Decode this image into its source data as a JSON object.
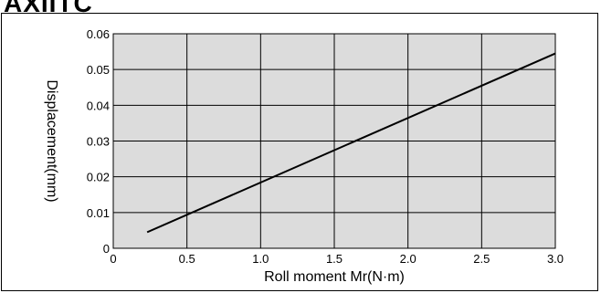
{
  "page": {
    "title": "AXIITC"
  },
  "chart_data": {
    "type": "line",
    "title": "",
    "xlabel": "Roll moment Mr(N·m)",
    "ylabel": "Displacement(mm)",
    "xlim": [
      0,
      3.0
    ],
    "ylim": [
      0,
      0.06
    ],
    "x_ticks": [
      "0",
      "0.5",
      "1.0",
      "1.5",
      "2.0",
      "2.5",
      "3.0"
    ],
    "x_tick_values": [
      0,
      0.5,
      1.0,
      1.5,
      2.0,
      2.5,
      3.0
    ],
    "y_ticks": [
      "0",
      "0.01",
      "0.02",
      "0.03",
      "0.04",
      "0.05",
      "0.06"
    ],
    "y_tick_values": [
      0,
      0.01,
      0.02,
      0.03,
      0.04,
      0.05,
      0.06
    ],
    "grid": true,
    "plot_background": "#dcdcdc",
    "line_color": "#000000",
    "series": [
      {
        "x": [
          0.23,
          3.0
        ],
        "y": [
          0.0045,
          0.0545
        ]
      }
    ]
  }
}
